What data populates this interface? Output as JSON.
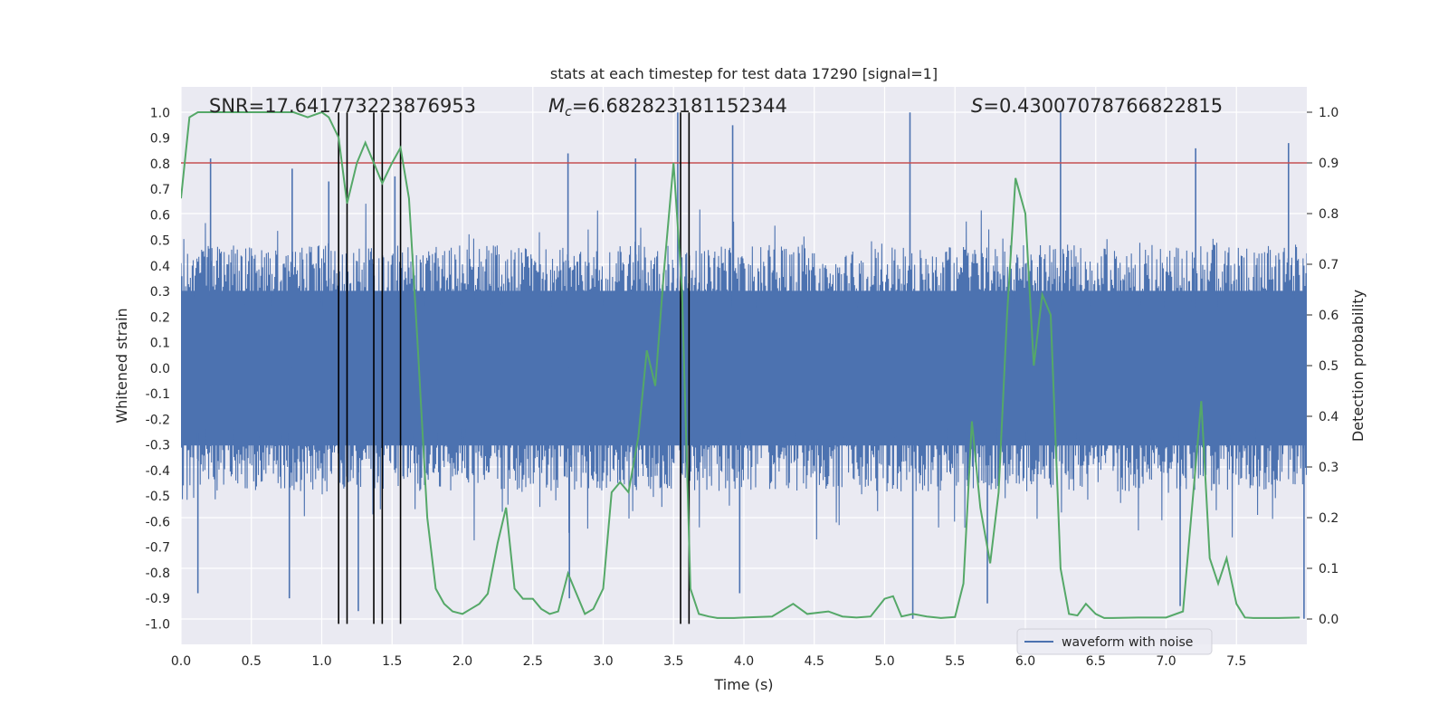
{
  "chart_data": {
    "type": "line",
    "title": "stats at each timestep for test data 17290 [signal=1]",
    "xlabel": "Time (s)",
    "ylabel_left": "Whitened strain",
    "ylabel_right": "Detection probability",
    "xlim": [
      0,
      8
    ],
    "ylim_left": [
      -1.08,
      1.1
    ],
    "ylim_right": [
      -0.05,
      1.05
    ],
    "x_ticks": [
      0.0,
      0.5,
      1.0,
      1.5,
      2.0,
      2.5,
      3.0,
      3.5,
      4.0,
      4.5,
      5.0,
      5.5,
      6.0,
      6.5,
      7.0,
      7.5
    ],
    "x_tick_labels": [
      "0.0",
      "0.5",
      "1.0",
      "1.5",
      "2.0",
      "2.5",
      "3.0",
      "3.5",
      "4.0",
      "4.5",
      "5.0",
      "5.5",
      "6.0",
      "6.5",
      "7.0",
      "7.5"
    ],
    "y_left_ticks": [
      1.0,
      0.9,
      0.8,
      0.7,
      0.6,
      0.5,
      0.4,
      0.3,
      0.2,
      0.1,
      0.0,
      -0.1,
      -0.2,
      -0.3,
      -0.4,
      -0.5,
      -0.6,
      -0.7,
      -0.8,
      -0.9,
      -1.0
    ],
    "y_left_tick_labels": [
      "1.0",
      "0.9",
      "0.8",
      "0.7",
      "0.6",
      "0.5",
      "0.4",
      "0.3",
      "0.2",
      "0.1",
      "0.0",
      "-0.1",
      "-0.2",
      "-0.3",
      "-0.4",
      "-0.5",
      "-0.6",
      "-0.7",
      "-0.8",
      "-0.9",
      "-1.0"
    ],
    "y_right_ticks": [
      1.0,
      0.9,
      0.8,
      0.7,
      0.6,
      0.5,
      0.4,
      0.3,
      0.2,
      0.1,
      0.0
    ],
    "y_right_tick_labels": [
      "1.0",
      "0.9",
      "0.8",
      "0.7",
      "0.6",
      "0.5",
      "0.4",
      "0.3",
      "0.2",
      "0.1",
      "0.0"
    ],
    "annotations": {
      "snr": "SNR=17.641773223876953",
      "mc_symbol": "M",
      "mc_sub": "c",
      "mc_value": "=6.682823181152344",
      "s_symbol": "S",
      "s_value": "=0.43007078766822815"
    },
    "legend": {
      "label": "waveform with noise",
      "placement": "lower-right"
    },
    "threshold": {
      "value": 0.9,
      "axis": "right",
      "color": "#c44e52"
    },
    "vertical_lines": [
      1.12,
      1.18,
      1.37,
      1.43,
      1.56,
      3.55,
      3.61
    ],
    "series": [
      {
        "name": "waveform with noise",
        "axis": "left",
        "color": "#4c72b0",
        "core_amplitude": 0.42,
        "spikes": [
          {
            "t": 0.21,
            "y": 0.82
          },
          {
            "t": 0.79,
            "y": 0.78
          },
          {
            "t": 1.05,
            "y": 0.73
          },
          {
            "t": 1.52,
            "y": 0.75
          },
          {
            "t": 2.75,
            "y": 0.84
          },
          {
            "t": 3.23,
            "y": 0.82
          },
          {
            "t": 3.53,
            "y": 1.0
          },
          {
            "t": 3.92,
            "y": 0.95
          },
          {
            "t": 5.18,
            "y": 1.0
          },
          {
            "t": 6.25,
            "y": 1.0
          },
          {
            "t": 7.21,
            "y": 0.86
          },
          {
            "t": 7.87,
            "y": 0.88
          },
          {
            "t": 0.12,
            "y": -0.88
          },
          {
            "t": 0.77,
            "y": -0.9
          },
          {
            "t": 1.26,
            "y": -0.95
          },
          {
            "t": 2.76,
            "y": -0.9
          },
          {
            "t": 3.97,
            "y": -0.88
          },
          {
            "t": 5.2,
            "y": -0.98
          },
          {
            "t": 5.73,
            "y": -0.92
          },
          {
            "t": 7.1,
            "y": -0.93
          },
          {
            "t": 7.98,
            "y": -0.98
          }
        ]
      },
      {
        "name": "Detection probability",
        "axis": "right",
        "color": "#55a868",
        "x": [
          0.0,
          0.06,
          0.12,
          0.2,
          0.4,
          0.6,
          0.8,
          0.9,
          1.0,
          1.05,
          1.12,
          1.18,
          1.25,
          1.31,
          1.37,
          1.43,
          1.5,
          1.56,
          1.62,
          1.68,
          1.75,
          1.81,
          1.87,
          1.93,
          2.0,
          2.06,
          2.12,
          2.18,
          2.25,
          2.31,
          2.37,
          2.43,
          2.5,
          2.56,
          2.62,
          2.68,
          2.75,
          2.81,
          2.87,
          2.93,
          3.0,
          3.06,
          3.12,
          3.18,
          3.25,
          3.31,
          3.37,
          3.43,
          3.5,
          3.56,
          3.62,
          3.68,
          3.75,
          3.81,
          3.87,
          3.93,
          4.0,
          4.2,
          4.35,
          4.45,
          4.6,
          4.7,
          4.8,
          4.9,
          5.0,
          5.06,
          5.12,
          5.2,
          5.3,
          5.4,
          5.5,
          5.56,
          5.62,
          5.68,
          5.75,
          5.81,
          5.87,
          5.93,
          6.0,
          6.06,
          6.12,
          6.18,
          6.25,
          6.31,
          6.37,
          6.43,
          6.5,
          6.56,
          6.62,
          6.8,
          7.0,
          7.12,
          7.25,
          7.31,
          7.37,
          7.43,
          7.5,
          7.56,
          7.62,
          7.8,
          7.95
        ],
        "y": [
          0.83,
          0.99,
          1.0,
          1.0,
          1.0,
          1.0,
          1.0,
          0.99,
          1.0,
          0.99,
          0.95,
          0.82,
          0.9,
          0.94,
          0.9,
          0.86,
          0.9,
          0.93,
          0.83,
          0.55,
          0.2,
          0.06,
          0.03,
          0.015,
          0.01,
          0.02,
          0.03,
          0.05,
          0.15,
          0.22,
          0.06,
          0.04,
          0.04,
          0.02,
          0.01,
          0.015,
          0.09,
          0.05,
          0.01,
          0.02,
          0.06,
          0.25,
          0.27,
          0.25,
          0.36,
          0.53,
          0.46,
          0.68,
          0.9,
          0.65,
          0.06,
          0.01,
          0.005,
          0.002,
          0.002,
          0.002,
          0.003,
          0.005,
          0.03,
          0.01,
          0.015,
          0.005,
          0.003,
          0.005,
          0.04,
          0.045,
          0.005,
          0.01,
          0.005,
          0.002,
          0.004,
          0.07,
          0.39,
          0.22,
          0.11,
          0.25,
          0.6,
          0.87,
          0.8,
          0.5,
          0.64,
          0.6,
          0.1,
          0.01,
          0.007,
          0.03,
          0.01,
          0.002,
          0.002,
          0.003,
          0.003,
          0.015,
          0.43,
          0.12,
          0.07,
          0.12,
          0.03,
          0.003,
          0.002,
          0.002,
          0.003
        ]
      }
    ]
  }
}
